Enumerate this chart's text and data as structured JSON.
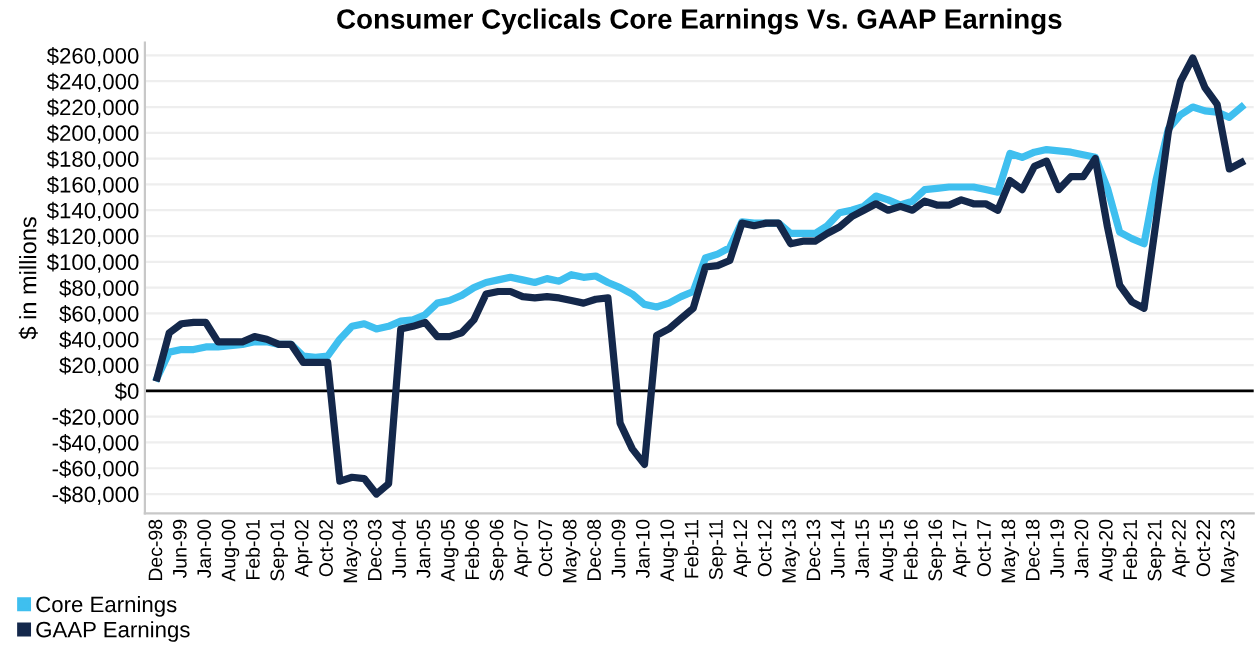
{
  "chart_data": {
    "type": "line",
    "title": "Consumer Cyclicals Core Earnings Vs. GAAP Earnings",
    "ylabel": "$ in millions",
    "categories": [
      "Dec-98",
      null,
      "Jun-99",
      null,
      "Jan-00",
      null,
      "Aug-00",
      null,
      "Feb-01",
      null,
      "Sep-01",
      null,
      "Apr-02",
      null,
      "Oct-02",
      null,
      "May-03",
      null,
      "Dec-03",
      null,
      "Jun-04",
      null,
      "Jan-05",
      null,
      "Aug-05",
      null,
      "Feb-06",
      null,
      "Sep-06",
      null,
      "Apr-07",
      null,
      "Oct-07",
      null,
      "May-08",
      null,
      "Dec-08",
      null,
      "Jun-09",
      null,
      "Jan-10",
      null,
      "Aug-10",
      null,
      "Feb-11",
      null,
      "Sep-11",
      null,
      "Apr-12",
      null,
      "Oct-12",
      null,
      "May-13",
      null,
      "Dec-13",
      null,
      "Jun-14",
      null,
      "Jan-15",
      null,
      "Aug-15",
      null,
      "Feb-16",
      null,
      "Sep-16",
      null,
      "Apr-17",
      null,
      "Oct-17",
      null,
      "May-18",
      null,
      "Dec-18",
      null,
      "Jun-19",
      null,
      "Jan-20",
      null,
      "Aug-20",
      null,
      "Feb-21",
      null,
      "Sep-21",
      null,
      "Apr-22",
      null,
      "Oct-22",
      null,
      "May-23",
      null
    ],
    "series": [
      {
        "name": "Core Earnings",
        "color": "#3fbfef",
        "values": [
          10000,
          30000,
          32000,
          32000,
          34000,
          34000,
          35000,
          36000,
          38000,
          38000,
          36000,
          36000,
          27000,
          26000,
          27000,
          40000,
          50000,
          52000,
          48000,
          50000,
          54000,
          55000,
          59000,
          68000,
          70000,
          74000,
          80000,
          84000,
          86000,
          88000,
          86000,
          84000,
          87000,
          85000,
          90000,
          88000,
          89000,
          84000,
          80000,
          75000,
          67000,
          65000,
          68000,
          73000,
          77000,
          103000,
          106000,
          111000,
          131000,
          130000,
          130000,
          130000,
          122000,
          122000,
          122000,
          128000,
          138000,
          140000,
          143000,
          151000,
          148000,
          144000,
          147000,
          156000,
          157000,
          158000,
          158000,
          158000,
          156000,
          154000,
          184000,
          181000,
          185000,
          187000,
          186000,
          185000,
          183000,
          181000,
          157000,
          123000,
          118000,
          114000,
          164000,
          203000,
          214000,
          220000,
          217000,
          216000,
          212000,
          220000
        ]
      },
      {
        "name": "GAAP Earnings",
        "color": "#14284b",
        "values": [
          10000,
          45000,
          52000,
          53000,
          53000,
          38000,
          38000,
          38000,
          42000,
          40000,
          36000,
          36000,
          22000,
          22000,
          22000,
          -70000,
          -67000,
          -68000,
          -80000,
          -72000,
          48000,
          50000,
          53000,
          42000,
          42000,
          45000,
          55000,
          75000,
          77000,
          77000,
          73000,
          72000,
          73000,
          72000,
          70000,
          68000,
          71000,
          72000,
          -25000,
          -45000,
          -57000,
          43000,
          48000,
          56000,
          64000,
          96000,
          97000,
          101000,
          130000,
          128000,
          130000,
          130000,
          114000,
          116000,
          116000,
          122000,
          127000,
          135000,
          140000,
          145000,
          140000,
          143000,
          140000,
          147000,
          144000,
          144000,
          148000,
          145000,
          145000,
          140000,
          163000,
          156000,
          174000,
          178000,
          156000,
          166000,
          166000,
          180000,
          127000,
          82000,
          69000,
          64000,
          132000,
          201000,
          240000,
          258000,
          235000,
          222000,
          172000,
          177000
        ]
      }
    ],
    "ylim": [
      -95000,
      270000
    ],
    "yticks": [
      {
        "value": -80000,
        "label": "-$80,000"
      },
      {
        "value": -60000,
        "label": "-$60,000"
      },
      {
        "value": -40000,
        "label": "-$40,000"
      },
      {
        "value": -20000,
        "label": "-$20,000"
      },
      {
        "value": 0,
        "label": "$0"
      },
      {
        "value": 20000,
        "label": "$20,000"
      },
      {
        "value": 40000,
        "label": "$40,000"
      },
      {
        "value": 60000,
        "label": "$60,000"
      },
      {
        "value": 80000,
        "label": "$80,000"
      },
      {
        "value": 100000,
        "label": "$100,000"
      },
      {
        "value": 120000,
        "label": "$120,000"
      },
      {
        "value": 140000,
        "label": "$140,000"
      },
      {
        "value": 160000,
        "label": "$160,000"
      },
      {
        "value": 180000,
        "label": "$180,000"
      },
      {
        "value": 200000,
        "label": "$200,000"
      },
      {
        "value": 220000,
        "label": "$220,000"
      },
      {
        "value": 240000,
        "label": "$240,000"
      },
      {
        "value": 260000,
        "label": "$260,000"
      }
    ],
    "ref_lines": [
      {
        "axis": "y",
        "value": 0,
        "color": "#000000"
      }
    ],
    "grid": "y",
    "legend": "bottom left",
    "line_style": "solid",
    "marker": "none"
  }
}
